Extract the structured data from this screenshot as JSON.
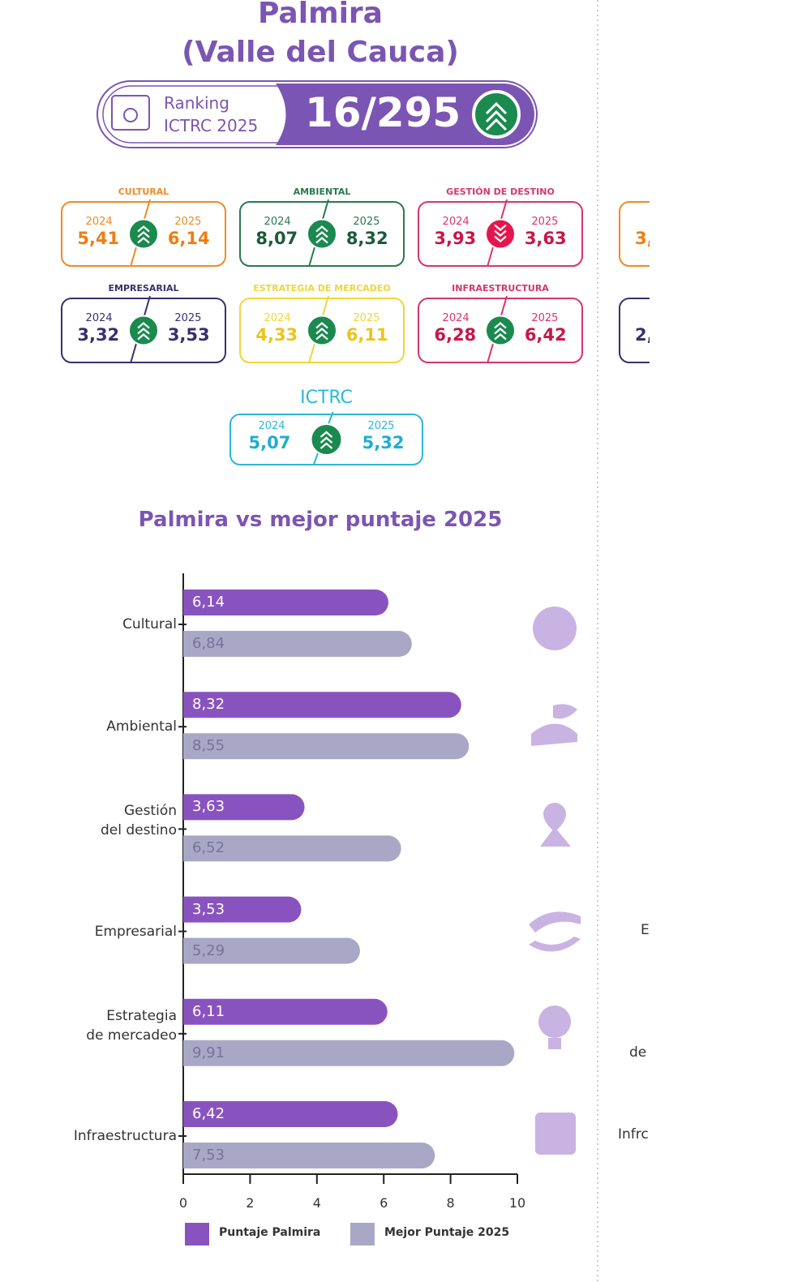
{
  "header": {
    "title": [
      "Palmira",
      "(Valle del Cauca)"
    ],
    "ranking_label": "Ranking\nICTRC 2025",
    "ranking_value": "16/295"
  },
  "cards": [
    {
      "name": "CULTURAL",
      "year_a": "2024",
      "year_b": "2025",
      "value_a": "5,41",
      "value_b": "6,14",
      "trend": "up",
      "color": "#f08a24",
      "text_color": "#ee7d12"
    },
    {
      "name": "AMBIENTAL",
      "year_a": "2024",
      "year_b": "2025",
      "value_a": "8,07",
      "value_b": "8,32",
      "trend": "up",
      "color": "#2a7a50",
      "text_color": "#1d5a3a"
    },
    {
      "name": "GESTIÓN DE DESTINO",
      "year_a": "2024",
      "year_b": "2025",
      "value_a": "3,93",
      "value_b": "3,63",
      "trend": "down",
      "color": "#d8356a",
      "text_color": "#c8174a"
    },
    {
      "name": "EMPRESARIAL",
      "year_a": "2024",
      "year_b": "2025",
      "value_a": "3,32",
      "value_b": "3,53",
      "trend": "up",
      "color": "#3b2f6e",
      "text_color": "#3b2f6e"
    },
    {
      "name": "ESTRATEGIA DE MERCADEO",
      "year_a": "2024",
      "year_b": "2025",
      "value_a": "4,33",
      "value_b": "6,11",
      "trend": "up",
      "color": "#f0d53a",
      "text_color": "#ebc51c"
    },
    {
      "name": "INFRAESTRUCTURA",
      "year_a": "2024",
      "year_b": "2025",
      "value_a": "6,28",
      "value_b": "6,42",
      "trend": "up",
      "color": "#d8356a",
      "text_color": "#c8174a"
    }
  ],
  "total": {
    "name": "ICTRC",
    "year_a": "2024",
    "year_b": "2025",
    "value_a": "5,07",
    "value_b": "5,32",
    "trend": "up",
    "color": "#2bb8d8",
    "text_color": "#22acd0"
  },
  "next_column": {
    "card_values": [
      "3,",
      "2,"
    ],
    "chart_labels": [
      "E",
      "de",
      "Infrc"
    ]
  },
  "chart_data": {
    "type": "bar",
    "orientation": "horizontal",
    "title": "Palmira vs mejor puntaje 2025",
    "categories": [
      "Cultural",
      "Ambiental",
      "Gestión\ndel destino",
      "Empresarial",
      "Estrategia\nde mercadeo",
      "Infraestructura"
    ],
    "series": [
      {
        "name": "Puntaje Palmira",
        "color": "#8953bf",
        "values": [
          6.14,
          8.32,
          3.63,
          3.53,
          6.11,
          6.42
        ],
        "value_labels": [
          "6,14",
          "8,32",
          "3,63",
          "3,53",
          "6,11",
          "6,42"
        ]
      },
      {
        "name": "Mejor Puntaje 2025",
        "color": "#aaa7c6",
        "values": [
          6.84,
          8.55,
          6.52,
          5.29,
          9.91,
          7.53
        ],
        "value_labels": [
          "6,84",
          "8,55",
          "6,52",
          "5,29",
          "9,91",
          "7,53"
        ]
      }
    ],
    "xlim": [
      0,
      10
    ],
    "xticks": [
      0,
      2,
      4,
      6,
      8,
      10
    ],
    "legend": "bottom"
  }
}
